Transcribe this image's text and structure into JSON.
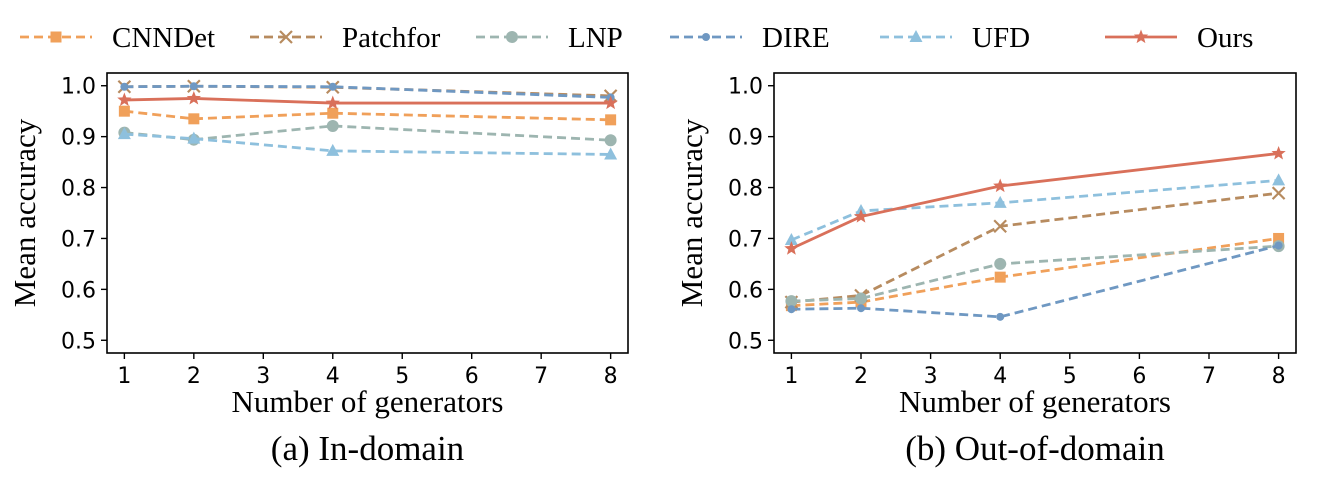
{
  "legend": [
    "CNNDet",
    "Patchfor",
    "LNP",
    "DIRE",
    "UFD",
    "Ours"
  ],
  "series_styles": [
    {
      "name": "CNNDet",
      "color": "#F0A05A",
      "dash": true,
      "marker": "square"
    },
    {
      "name": "Patchfor",
      "color": "#B78B5F",
      "dash": true,
      "marker": "x"
    },
    {
      "name": "LNP",
      "color": "#9DB5B0",
      "dash": true,
      "marker": "circle"
    },
    {
      "name": "DIRE",
      "color": "#6F98C2",
      "dash": true,
      "marker": "dot"
    },
    {
      "name": "UFD",
      "color": "#8EC0DD",
      "dash": true,
      "marker": "triangle"
    },
    {
      "name": "Ours",
      "color": "#D9705A",
      "dash": false,
      "marker": "star"
    }
  ],
  "chart_data": [
    {
      "type": "line",
      "caption": "(a) In-domain",
      "xlabel": "Number of generators",
      "ylabel": "Mean accuracy",
      "xlim": [
        0.75,
        8.25
      ],
      "ylim": [
        0.475,
        1.025
      ],
      "xticks": [
        1,
        2,
        3,
        4,
        5,
        6,
        7,
        8
      ],
      "yticks": [
        "0.5",
        "0.6",
        "0.7",
        "0.8",
        "0.9",
        "1.0"
      ],
      "x": [
        1,
        2,
        4,
        8
      ],
      "series": [
        {
          "name": "CNNDet",
          "values": [
            0.95,
            0.935,
            0.946,
            0.933
          ]
        },
        {
          "name": "Patchfor",
          "values": [
            0.998,
            0.999,
            0.997,
            0.98
          ]
        },
        {
          "name": "LNP",
          "values": [
            0.908,
            0.894,
            0.921,
            0.893
          ]
        },
        {
          "name": "DIRE",
          "values": [
            0.998,
            0.999,
            0.998,
            0.977
          ]
        },
        {
          "name": "UFD",
          "values": [
            0.905,
            0.896,
            0.872,
            0.865
          ]
        },
        {
          "name": "Ours",
          "values": [
            0.972,
            0.975,
            0.966,
            0.966
          ]
        }
      ]
    },
    {
      "type": "line",
      "caption": "(b) Out-of-domain",
      "xlabel": "Number of generators",
      "ylabel": "Mean accuracy",
      "xlim": [
        0.75,
        8.25
      ],
      "ylim": [
        0.475,
        1.025
      ],
      "xticks": [
        1,
        2,
        3,
        4,
        5,
        6,
        7,
        8
      ],
      "yticks": [
        "0.5",
        "0.6",
        "0.7",
        "0.8",
        "0.9",
        "1.0"
      ],
      "x": [
        1,
        2,
        4,
        8
      ],
      "series": [
        {
          "name": "CNNDet",
          "values": [
            0.568,
            0.575,
            0.624,
            0.7
          ]
        },
        {
          "name": "Patchfor",
          "values": [
            0.575,
            0.588,
            0.724,
            0.789
          ]
        },
        {
          "name": "LNP",
          "values": [
            0.577,
            0.582,
            0.65,
            0.685
          ]
        },
        {
          "name": "DIRE",
          "values": [
            0.561,
            0.563,
            0.546,
            0.686
          ]
        },
        {
          "name": "UFD",
          "values": [
            0.697,
            0.754,
            0.77,
            0.814
          ]
        },
        {
          "name": "Ours",
          "values": [
            0.68,
            0.743,
            0.803,
            0.867
          ]
        }
      ]
    }
  ]
}
